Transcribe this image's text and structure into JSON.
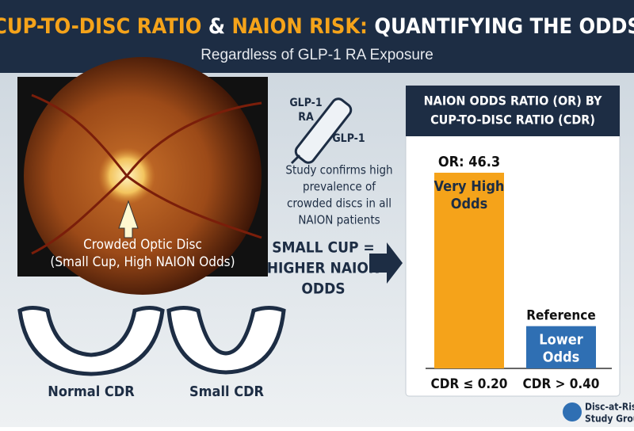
{
  "header": {
    "title_parts": [
      "CUP-TO-DISC RATIO",
      "&",
      "NAION RISK:",
      "QUANTIFYING THE ODDS"
    ],
    "subtitle": "Regardless of GLP-1 RA Exposure"
  },
  "fundus": {
    "caption": [
      "Crowded Optic Disc",
      "(Small Cup, High NAION Odds)"
    ]
  },
  "pen": {
    "labels": [
      "GLP-1",
      "RA",
      "GLP-1"
    ]
  },
  "study_note": [
    "Study confirms high",
    "prevalence of",
    "crowded discs in all",
    "NAION patients"
  ],
  "arrow_text": [
    "SMALL CUP =",
    "HIGHER NAION",
    "ODDS"
  ],
  "diagrams": [
    "Normal CDR",
    "Small CDR"
  ],
  "chart_data": {
    "type": "bar",
    "title": [
      "NAION ODDS RATIO (OR) BY",
      "CUP-TO-DISC RATIO (CDR)"
    ],
    "categories": [
      "CDR ≤ 0.20",
      "CDR > 0.40"
    ],
    "values": [
      46.3,
      10
    ],
    "value_labels": [
      "OR: 46.3",
      null
    ],
    "reference_label": "Reference",
    "bar_texts": [
      [
        "Very High",
        "Odds"
      ],
      [
        "Lower",
        "Odds"
      ]
    ],
    "colors": [
      "#f5a31a",
      "#2f6fb3"
    ]
  },
  "logo": [
    "Disc-at-Risk",
    "Study Group"
  ]
}
